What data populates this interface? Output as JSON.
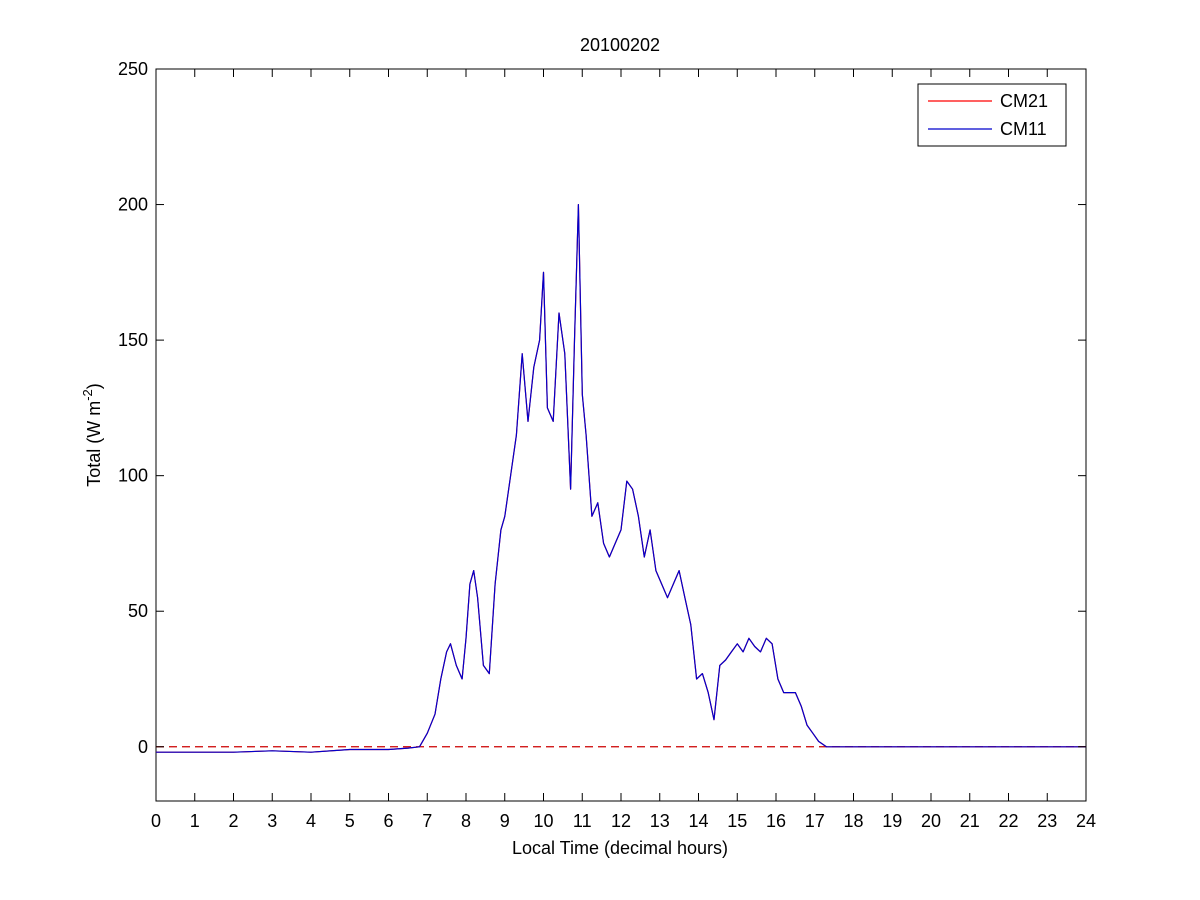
{
  "chart_data": {
    "type": "line",
    "title": "20100202",
    "xlabel": "Local Time (decimal hours)",
    "ylabel": "Total (W m-2)",
    "ylabel_main": "Total (W m",
    "ylabel_sup": "-2",
    "ylabel_end": ")",
    "xlim": [
      0,
      24
    ],
    "ylim": [
      -20,
      250
    ],
    "xticks": [
      0,
      1,
      2,
      3,
      4,
      5,
      6,
      7,
      8,
      9,
      10,
      11,
      12,
      13,
      14,
      15,
      16,
      17,
      18,
      19,
      20,
      21,
      22,
      23,
      24
    ],
    "xtick_labels": [
      "0",
      "1",
      "2",
      "3",
      "4",
      "5",
      "6",
      "7",
      "8",
      "9",
      "10",
      "11",
      "12",
      "13",
      "14",
      "15",
      "16",
      "17",
      "18",
      "19",
      "20",
      "21",
      "22",
      "23",
      "24"
    ],
    "yticks": [
      0,
      50,
      100,
      150,
      200,
      250
    ],
    "ytick_labels": [
      "0",
      "50",
      "100",
      "150",
      "200",
      "250"
    ],
    "grid": false,
    "legend_position": "top-right",
    "reference_line": {
      "y": 0,
      "color": "#cc0000",
      "style": "dashed"
    },
    "series": [
      {
        "name": "CM21",
        "color": "#ff0000",
        "x": [
          0,
          1,
          2,
          3,
          4,
          5,
          6,
          6.5,
          6.8,
          7.0,
          7.2,
          7.35,
          7.5,
          7.6,
          7.75,
          7.9,
          8.0,
          8.1,
          8.2,
          8.3,
          8.45,
          8.6,
          8.75,
          8.9,
          9.0,
          9.15,
          9.3,
          9.45,
          9.6,
          9.75,
          9.9,
          10.0,
          10.1,
          10.25,
          10.4,
          10.55,
          10.7,
          10.8,
          10.9,
          11.0,
          11.1,
          11.25,
          11.4,
          11.55,
          11.7,
          11.85,
          12.0,
          12.15,
          12.3,
          12.45,
          12.6,
          12.75,
          12.9,
          13.05,
          13.2,
          13.35,
          13.5,
          13.65,
          13.8,
          13.95,
          14.1,
          14.25,
          14.4,
          14.55,
          14.7,
          14.85,
          15.0,
          15.15,
          15.3,
          15.45,
          15.6,
          15.75,
          15.9,
          16.05,
          16.2,
          16.35,
          16.5,
          16.65,
          16.8,
          16.95,
          17.1,
          17.3,
          17.5,
          17.7,
          18,
          19,
          20,
          21,
          22,
          23,
          24
        ],
        "y": [
          -2,
          -2,
          -2,
          -1.5,
          -2,
          -1,
          -1,
          -0.5,
          0,
          5,
          12,
          25,
          35,
          38,
          30,
          25,
          40,
          60,
          65,
          55,
          30,
          27,
          60,
          80,
          85,
          100,
          115,
          145,
          120,
          140,
          150,
          175,
          125,
          120,
          160,
          145,
          95,
          150,
          200,
          130,
          115,
          85,
          90,
          75,
          70,
          75,
          80,
          98,
          95,
          85,
          70,
          80,
          65,
          60,
          55,
          60,
          65,
          55,
          45,
          25,
          27,
          20,
          10,
          30,
          32,
          35,
          38,
          35,
          40,
          37,
          35,
          40,
          38,
          25,
          20,
          20,
          20,
          15,
          8,
          5,
          2,
          0,
          0,
          0,
          0,
          0,
          0,
          0,
          0,
          0,
          0
        ]
      },
      {
        "name": "CM11",
        "color": "#0000cc",
        "x": [
          0,
          1,
          2,
          3,
          4,
          5,
          6,
          6.5,
          6.8,
          7.0,
          7.2,
          7.35,
          7.5,
          7.6,
          7.75,
          7.9,
          8.0,
          8.1,
          8.2,
          8.3,
          8.45,
          8.6,
          8.75,
          8.9,
          9.0,
          9.15,
          9.3,
          9.45,
          9.6,
          9.75,
          9.9,
          10.0,
          10.1,
          10.25,
          10.4,
          10.55,
          10.7,
          10.8,
          10.9,
          11.0,
          11.1,
          11.25,
          11.4,
          11.55,
          11.7,
          11.85,
          12.0,
          12.15,
          12.3,
          12.45,
          12.6,
          12.75,
          12.9,
          13.05,
          13.2,
          13.35,
          13.5,
          13.65,
          13.8,
          13.95,
          14.1,
          14.25,
          14.4,
          14.55,
          14.7,
          14.85,
          15.0,
          15.15,
          15.3,
          15.45,
          15.6,
          15.75,
          15.9,
          16.05,
          16.2,
          16.35,
          16.5,
          16.65,
          16.8,
          16.95,
          17.1,
          17.3,
          17.5,
          17.7,
          18,
          19,
          20,
          21,
          22,
          23,
          24
        ],
        "y": [
          -2,
          -2,
          -2,
          -1.5,
          -2,
          -1,
          -1,
          -0.5,
          0,
          5,
          12,
          25,
          35,
          38,
          30,
          25,
          40,
          60,
          65,
          55,
          30,
          27,
          60,
          80,
          85,
          100,
          115,
          145,
          120,
          140,
          150,
          175,
          125,
          120,
          160,
          145,
          95,
          150,
          200,
          130,
          115,
          85,
          90,
          75,
          70,
          75,
          80,
          98,
          95,
          85,
          70,
          80,
          65,
          60,
          55,
          60,
          65,
          55,
          45,
          25,
          27,
          20,
          10,
          30,
          32,
          35,
          38,
          35,
          40,
          37,
          35,
          40,
          38,
          25,
          20,
          20,
          20,
          15,
          8,
          5,
          2,
          0,
          0,
          0,
          0,
          0,
          0,
          0,
          0,
          0,
          0
        ]
      }
    ]
  }
}
